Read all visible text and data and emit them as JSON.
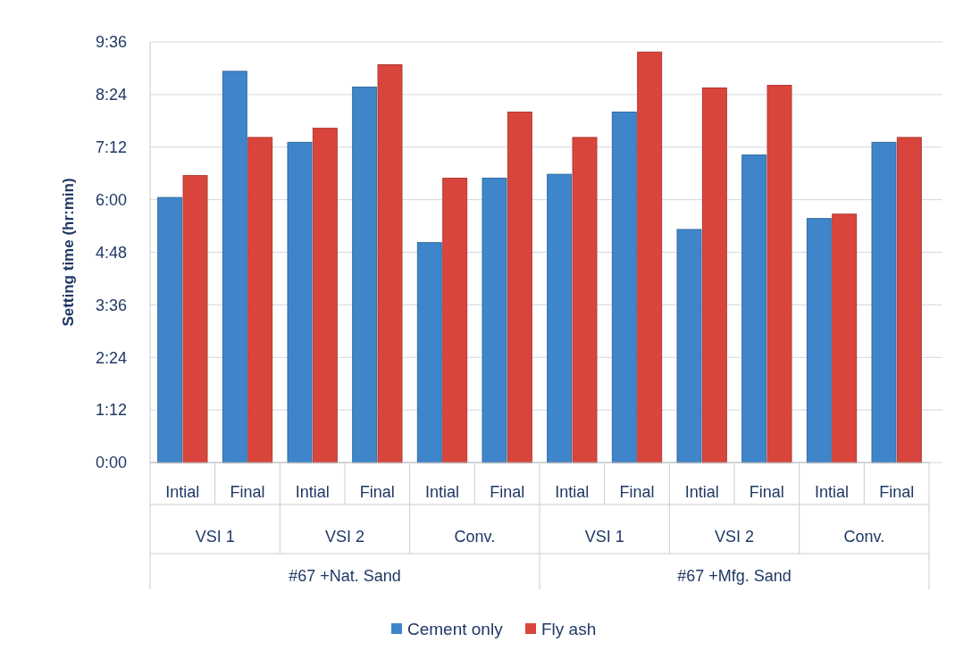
{
  "chart_data": {
    "type": "bar",
    "ylabel": "Setting time (hr:min)",
    "categories": [
      "Intial",
      "Final",
      "Intial",
      "Final",
      "Intial",
      "Final",
      "Intial",
      "Final",
      "Intial",
      "Final",
      "Intial",
      "Final"
    ],
    "annotations": [
      "VSI 1",
      "VSI 2",
      "Conv.",
      "VSI 1",
      "VSI 2",
      "Conv.",
      "#67 +Nat. Sand",
      "#67 +Mfg. Sand"
    ],
    "series": [
      {
        "name": "Cement only",
        "color": "#3f85c9",
        "values": [
          6.05,
          8.93,
          7.31,
          8.57,
          5.02,
          6.49,
          6.58,
          8.0,
          5.32,
          7.02,
          5.57,
          7.31
        ]
      },
      {
        "name": "Fly ash",
        "color": "#d9453c",
        "values": [
          6.55,
          7.42,
          7.63,
          9.08,
          6.49,
          8.0,
          7.42,
          9.37,
          8.55,
          8.61,
          5.67,
          7.42
        ]
      }
    ],
    "ylim": [
      0,
      9.6
    ],
    "yticks": [
      {
        "value": 0,
        "label": "0:00"
      },
      {
        "value": 1.2,
        "label": "1:12"
      },
      {
        "value": 2.4,
        "label": "2:24"
      },
      {
        "value": 3.6,
        "label": "3:36"
      },
      {
        "value": 4.8,
        "label": "4:48"
      },
      {
        "value": 6,
        "label": "6:00"
      },
      {
        "value": 7.2,
        "label": "7:12"
      },
      {
        "value": 8.4,
        "label": "8:24"
      },
      {
        "value": 9.6,
        "label": "9:36"
      }
    ],
    "grid": "y",
    "legend": "bottom"
  }
}
